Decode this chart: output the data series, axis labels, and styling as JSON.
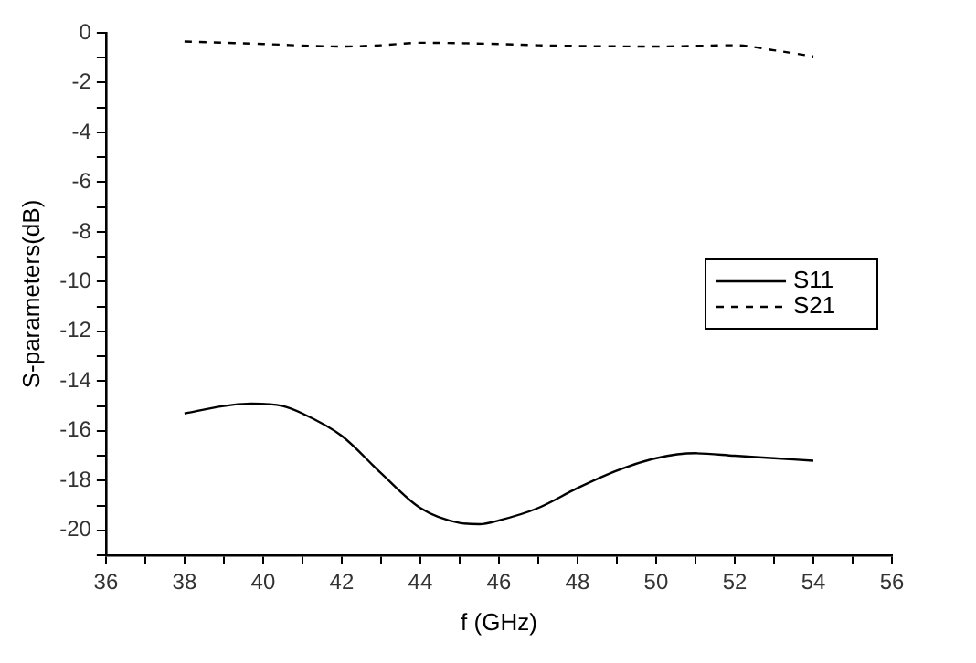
{
  "chart_data": {
    "type": "line",
    "xlabel": "f (GHz)",
    "ylabel": "S-parameters(dB)",
    "xlim": [
      36,
      56
    ],
    "xticks": [
      36,
      {
        "value": 37,
        "label": null
      },
      38,
      {
        "value": 39,
        "label": null
      },
      40,
      {
        "value": 41,
        "label": null
      },
      42,
      {
        "value": 43,
        "label": null
      },
      44,
      {
        "value": 45,
        "label": null
      },
      46,
      {
        "value": 47,
        "label": null
      },
      48,
      {
        "value": 49,
        "label": null
      },
      50,
      {
        "value": 51,
        "label": null
      },
      52,
      {
        "value": 53,
        "label": null
      },
      54,
      {
        "value": 55,
        "label": null
      },
      56
    ],
    "ylim": [
      -21,
      0
    ],
    "yticks": [
      0,
      {
        "value": -1,
        "label": null
      },
      -2,
      {
        "value": -3,
        "label": null
      },
      -4,
      {
        "value": -5,
        "label": null
      },
      -6,
      {
        "value": -7,
        "label": null
      },
      -8,
      {
        "value": -9,
        "label": null
      },
      -10,
      {
        "value": -11,
        "label": null
      },
      -12,
      {
        "value": -13,
        "label": null
      },
      -14,
      {
        "value": -15,
        "label": null
      },
      -16,
      {
        "value": -17,
        "label": null
      },
      -18,
      {
        "value": -19,
        "label": null
      },
      -20,
      {
        "value": -21,
        "label": null
      }
    ],
    "grid": false,
    "legend": "right",
    "marker": "none",
    "series": [
      {
        "name": "S11",
        "color": "#000000",
        "line_style": "solid",
        "x": [
          38,
          39,
          39.7,
          40.5,
          41,
          42,
          43,
          44,
          45,
          45.5,
          46,
          47,
          48,
          49,
          50,
          51,
          52,
          53,
          54
        ],
        "values": [
          -15.3,
          -15.0,
          -14.9,
          -15.0,
          -15.3,
          -16.2,
          -17.7,
          -19.1,
          -19.7,
          -19.75,
          -19.6,
          -19.1,
          -18.3,
          -17.6,
          -17.1,
          -16.9,
          -17.0,
          -17.1,
          -17.2
        ]
      },
      {
        "name": "S21",
        "color": "#000000",
        "line_style": "dashed",
        "x": [
          38,
          40,
          42,
          43,
          44,
          46,
          47,
          50,
          52,
          53,
          54
        ],
        "values": [
          -0.35,
          -0.45,
          -0.55,
          -0.5,
          -0.4,
          -0.45,
          -0.5,
          -0.55,
          -0.5,
          -0.7,
          -0.95
        ]
      }
    ]
  }
}
